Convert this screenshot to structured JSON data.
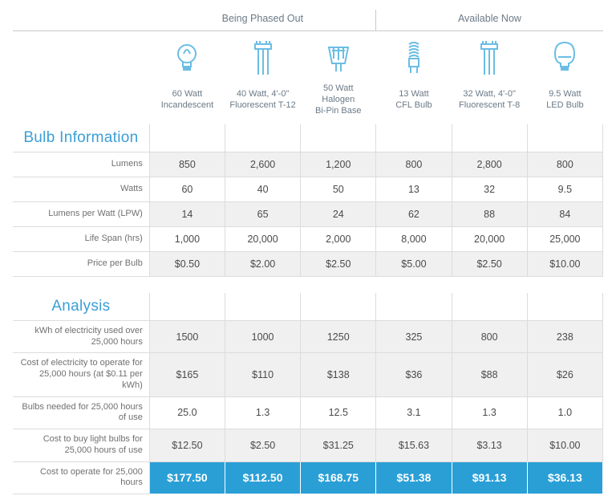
{
  "colors": {
    "accent": "#3b9fd6",
    "highlight_bg": "#2a9fd6",
    "shade_bg": "#f0f0f0",
    "border": "#dcdcdc",
    "text": "#606060",
    "icon_stroke": "#6bbde5"
  },
  "groups": {
    "left": "Being Phased Out",
    "right": "Available Now"
  },
  "bulbs": [
    {
      "line1": "60 Watt",
      "line2": "Incandescent"
    },
    {
      "line1": "40 Watt, 4'-0\"",
      "line2": "Fluorescent T-12"
    },
    {
      "line1": "50 Watt",
      "line2": "Halogen",
      "line3": "Bi-Pin Base"
    },
    {
      "line1": "13 Watt",
      "line2": "CFL Bulb"
    },
    {
      "line1": "32 Watt, 4'-0\"",
      "line2": "Fluorescent T-8"
    },
    {
      "line1": "9.5 Watt",
      "line2": "LED Bulb"
    }
  ],
  "sections": {
    "info": "Bulb Information",
    "analysis": "Analysis"
  },
  "info_rows": [
    {
      "label": "Lumens",
      "shade": true,
      "vals": [
        "850",
        "2,600",
        "1,200",
        "800",
        "2,800",
        "800"
      ]
    },
    {
      "label": "Watts",
      "shade": false,
      "vals": [
        "60",
        "40",
        "50",
        "13",
        "32",
        "9.5"
      ]
    },
    {
      "label": "Lumens per Watt (LPW)",
      "shade": true,
      "vals": [
        "14",
        "65",
        "24",
        "62",
        "88",
        "84"
      ]
    },
    {
      "label": "Life Span (hrs)",
      "shade": false,
      "vals": [
        "1,000",
        "20,000",
        "2,000",
        "8,000",
        "20,000",
        "25,000"
      ]
    },
    {
      "label": "Price per Bulb",
      "shade": true,
      "vals": [
        "$0.50",
        "$2.00",
        "$2.50",
        "$5.00",
        "$2.50",
        "$10.00"
      ]
    }
  ],
  "analysis_rows": [
    {
      "label": "kWh of electricity used over 25,000 hours",
      "shade": true,
      "vals": [
        "1500",
        "1000",
        "1250",
        "325",
        "800",
        "238"
      ]
    },
    {
      "label": "Cost of electricity to operate for 25,000 hours (at $0.11 per kWh)",
      "shade": true,
      "vals": [
        "$165",
        "$110",
        "$138",
        "$36",
        "$88",
        "$26"
      ]
    },
    {
      "label": "Bulbs needed for 25,000 hours of use",
      "shade": false,
      "vals": [
        "25.0",
        "1.3",
        "12.5",
        "3.1",
        "1.3",
        "1.0"
      ]
    },
    {
      "label": "Cost to buy light bulbs for 25,000 hours of use",
      "shade": true,
      "vals": [
        "$12.50",
        "$2.50",
        "$31.25",
        "$15.63",
        "$3.13",
        "$10.00"
      ]
    },
    {
      "label": "Cost to operate for 25,000 hours",
      "highlight": true,
      "vals": [
        "$177.50",
        "$112.50",
        "$168.75",
        "$51.38",
        "$91.13",
        "$36.13"
      ]
    }
  ]
}
